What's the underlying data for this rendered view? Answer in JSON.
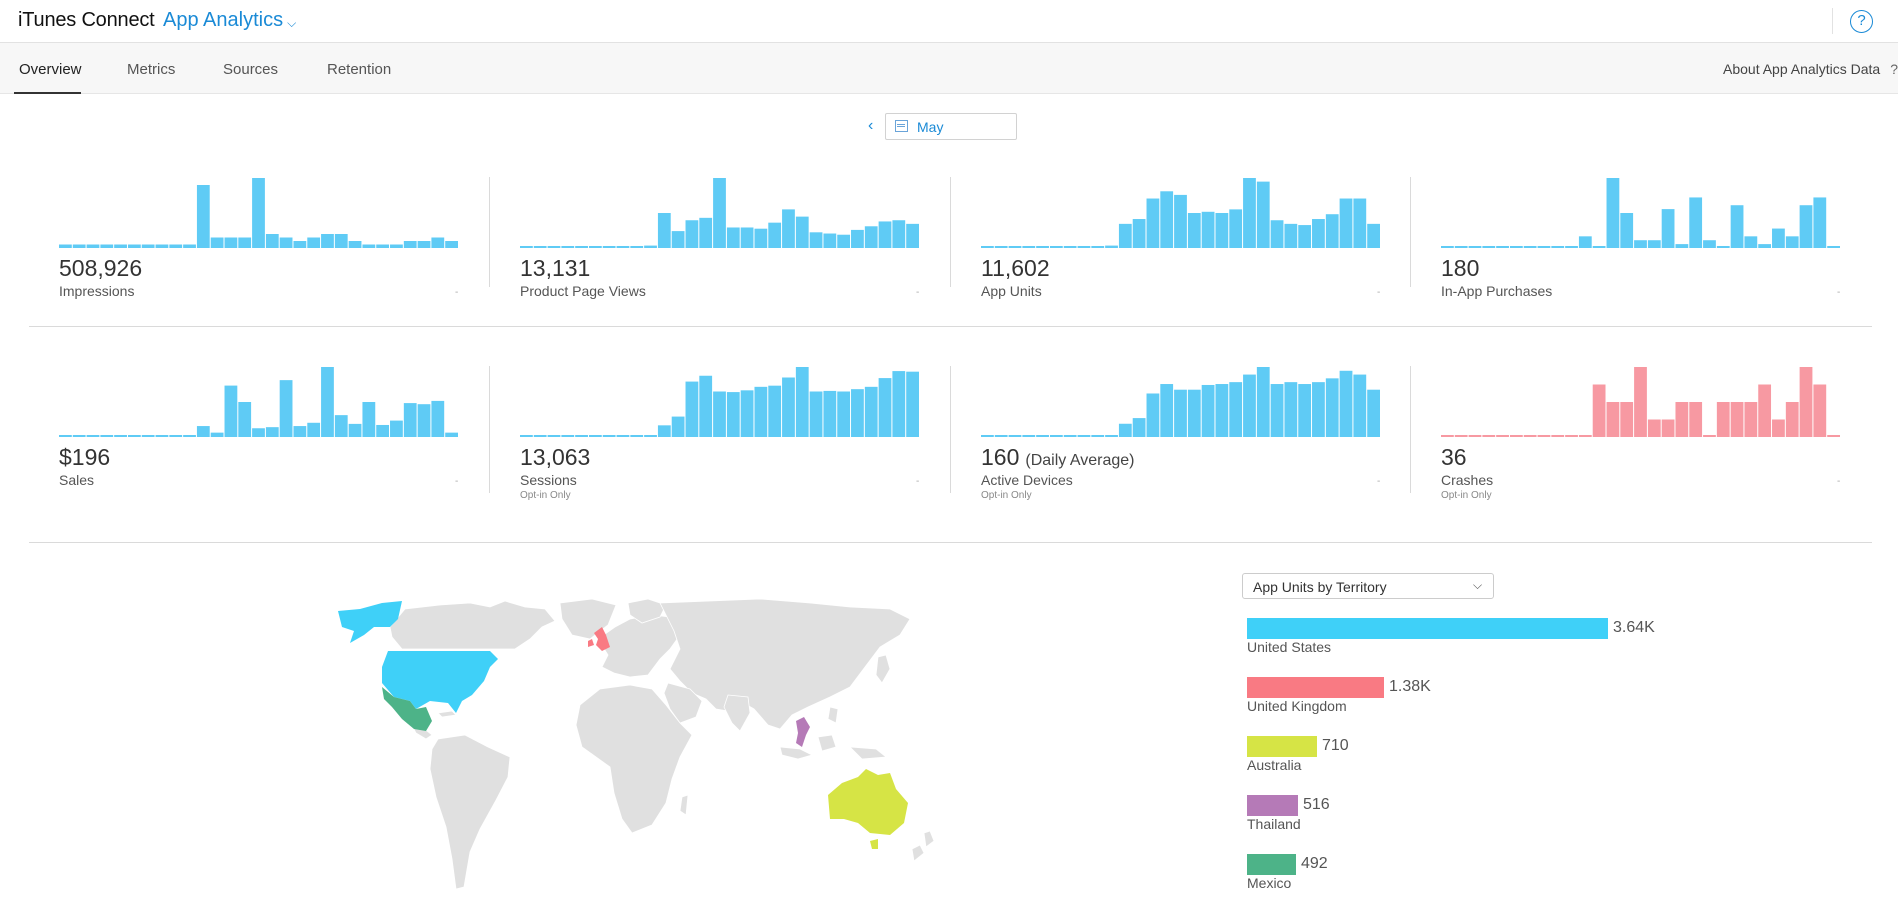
{
  "app": {
    "brand": "iTunes Connect",
    "section": "App Analytics",
    "help": "?"
  },
  "tabs": [
    {
      "label": "Overview",
      "active": true
    },
    {
      "label": "Metrics",
      "active": false
    },
    {
      "label": "Sources",
      "active": false
    },
    {
      "label": "Retention",
      "active": false
    }
  ],
  "about": {
    "label": "About App Analytics Data",
    "icon": "?"
  },
  "date": {
    "prev": "‹",
    "label": "May"
  },
  "colors": {
    "accent": "#1a8ad6",
    "bar": "#5fcbf5",
    "crash": "#f799a2"
  },
  "metrics": [
    {
      "value": "508,926",
      "suffix": "",
      "name": "Impressions",
      "sub": "",
      "color": "#5fcbf5",
      "bars": [
        1,
        1,
        1,
        1,
        1,
        1,
        1,
        1,
        1,
        1,
        18,
        3,
        3,
        3,
        20,
        4,
        3,
        2,
        3,
        4,
        4,
        2,
        1,
        1,
        1,
        2,
        2,
        3,
        2
      ]
    },
    {
      "value": "13,131",
      "suffix": "",
      "name": "Product Page Views",
      "sub": "",
      "color": "#5fcbf5",
      "bars": [
        1,
        1,
        1,
        1,
        1,
        1,
        1,
        1,
        1,
        2,
        29,
        14,
        23,
        25,
        58,
        17,
        17,
        16,
        21,
        32,
        26,
        13,
        12,
        11,
        15,
        18,
        22,
        23,
        20
      ]
    },
    {
      "value": "11,602",
      "suffix": "",
      "name": "App Units",
      "sub": "",
      "color": "#5fcbf5",
      "bars": [
        1,
        1,
        1,
        1,
        1,
        1,
        1,
        1,
        1,
        2,
        20,
        24,
        41,
        47,
        44,
        29,
        30,
        29,
        32,
        58,
        55,
        23,
        20,
        19,
        24,
        28,
        41,
        41,
        20
      ]
    },
    {
      "value": "180",
      "suffix": "",
      "name": "In-App Purchases",
      "sub": "",
      "color": "#5fcbf5",
      "bars": [
        0,
        0,
        0,
        0,
        0,
        0,
        0,
        0,
        0,
        0,
        3,
        0,
        18,
        9,
        2,
        2,
        10,
        1,
        13,
        2,
        0,
        11,
        3,
        1,
        5,
        3,
        11,
        13,
        0
      ]
    },
    {
      "value": "$196",
      "suffix": "",
      "name": "Sales",
      "sub": "",
      "color": "#5fcbf5",
      "bars": [
        0,
        0,
        0,
        0,
        0,
        0,
        0,
        0,
        0,
        0,
        10,
        4,
        47,
        32,
        8,
        9,
        52,
        10,
        13,
        64,
        20,
        12,
        32,
        11,
        15,
        31,
        30,
        33,
        4
      ]
    },
    {
      "value": "13,063",
      "suffix": "",
      "name": "Sessions",
      "sub": "Opt-in Only",
      "color": "#5fcbf5",
      "bars": [
        1,
        1,
        1,
        1,
        1,
        1,
        1,
        1,
        1,
        2,
        200,
        350,
        950,
        1050,
        780,
        770,
        800,
        860,
        880,
        1020,
        1200,
        780,
        790,
        780,
        820,
        860,
        1010,
        1130,
        1120
      ]
    },
    {
      "value": "160",
      "suffix": "(Daily Average)",
      "name": "Active Devices",
      "sub": "Opt-in Only",
      "color": "#5fcbf5",
      "bars": [
        1,
        1,
        1,
        1,
        1,
        1,
        1,
        1,
        1,
        2,
        70,
        100,
        230,
        280,
        250,
        250,
        275,
        280,
        290,
        330,
        370,
        280,
        290,
        280,
        290,
        310,
        350,
        330,
        250
      ]
    },
    {
      "value": "36",
      "suffix": "",
      "name": "Crashes",
      "sub": "Opt-in Only",
      "color": "#f799a2",
      "bars": [
        0,
        0,
        0,
        0,
        0,
        0,
        0,
        0,
        0,
        0,
        0,
        3,
        2,
        2,
        4,
        1,
        1,
        2,
        2,
        0,
        2,
        2,
        2,
        3,
        1,
        2,
        4,
        3,
        0
      ]
    }
  ],
  "territory": {
    "selector": "App Units by Territory",
    "items": [
      {
        "name": "United States",
        "value": "3.64K",
        "units": 3640,
        "color": "#3fd0f8"
      },
      {
        "name": "United Kingdom",
        "value": "1.38K",
        "units": 1380,
        "color": "#f97a83"
      },
      {
        "name": "Australia",
        "value": "710",
        "units": 710,
        "color": "#d6e445"
      },
      {
        "name": "Thailand",
        "value": "516",
        "units": 516,
        "color": "#b57ab7"
      },
      {
        "name": "Mexico",
        "value": "492",
        "units": 492,
        "color": "#4db388"
      }
    ]
  }
}
